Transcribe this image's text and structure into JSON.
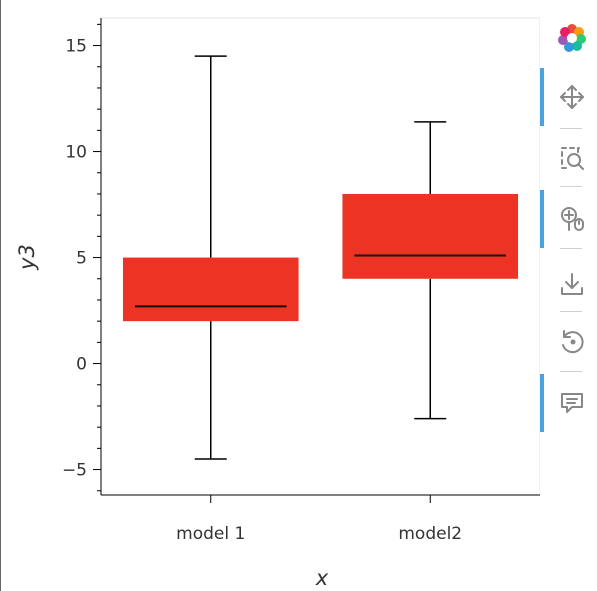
{
  "chart_data": {
    "type": "boxplot",
    "xlabel": "x",
    "ylabel": "y3",
    "categories": [
      "model 1",
      "model2"
    ],
    "boxes": [
      {
        "category": "model 1",
        "whisker_low": -4.5,
        "q1": 2.0,
        "median": 2.7,
        "q3": 5.0,
        "whisker_high": 14.5
      },
      {
        "category": "model2",
        "whisker_low": -2.6,
        "q1": 4.0,
        "median": 5.1,
        "q3": 8.0,
        "whisker_high": 11.4
      }
    ],
    "ylim": [
      -6.2,
      16.3
    ],
    "yticks": [
      -5,
      0,
      5,
      10,
      15
    ],
    "ytick_labels": [
      "−5",
      "0",
      "5",
      "10",
      "15"
    ],
    "grid": false,
    "box_color": "#ec3324"
  },
  "toolbar": {
    "tools": [
      {
        "name": "bokeh-logo-icon",
        "active": false
      },
      {
        "name": "pan-icon",
        "active": true
      },
      {
        "name": "box-zoom-icon",
        "active": false
      },
      {
        "name": "wheel-zoom-icon",
        "active": true
      },
      {
        "name": "save-icon",
        "active": false
      },
      {
        "name": "reset-icon",
        "active": false
      },
      {
        "name": "hover-icon",
        "active": true
      }
    ]
  }
}
